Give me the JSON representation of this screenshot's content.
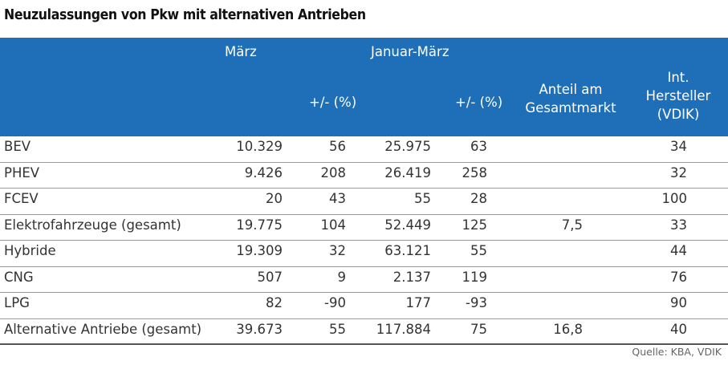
{
  "title": "Neuzulassungen von Pkw mit alternativen Antrieben",
  "header": {
    "maerz": "März",
    "jan_maerz": "Januar-März",
    "change1": "+/- (%)",
    "change2": "+/- (%)",
    "anteil_line1": "Anteil am",
    "anteil_line2": "Gesamtmarkt",
    "int_line1": "Int.",
    "int_line2": "Hersteller",
    "int_line3": "(VDIK)"
  },
  "rows": [
    {
      "label": "BEV",
      "maerz": "10.329",
      "maerz_change": "56",
      "jan_maerz": "25.975",
      "jan_change": "63",
      "anteil": "",
      "vdik": "34"
    },
    {
      "label": "PHEV",
      "maerz": "9.426",
      "maerz_change": "208",
      "jan_maerz": "26.419",
      "jan_change": "258",
      "anteil": "",
      "vdik": "32"
    },
    {
      "label": "FCEV",
      "maerz": "20",
      "maerz_change": "43",
      "jan_maerz": "55",
      "jan_change": "28",
      "anteil": "",
      "vdik": "100"
    },
    {
      "label": "Elektrofahrzeuge (gesamt)",
      "maerz": "19.775",
      "maerz_change": "104",
      "jan_maerz": "52.449",
      "jan_change": "125",
      "anteil": "7,5",
      "vdik": "33"
    },
    {
      "label": "Hybride",
      "maerz": "19.309",
      "maerz_change": "32",
      "jan_maerz": "63.121",
      "jan_change": "55",
      "anteil": "",
      "vdik": "44"
    },
    {
      "label": "CNG",
      "maerz": "507",
      "maerz_change": "9",
      "jan_maerz": "2.137",
      "jan_change": "119",
      "anteil": "",
      "vdik": "76"
    },
    {
      "label": "LPG",
      "maerz": "82",
      "maerz_change": "-90",
      "jan_maerz": "177",
      "jan_change": "-93",
      "anteil": "",
      "vdik": "90"
    },
    {
      "label": "Alternative Antriebe (gesamt)",
      "maerz": "39.673",
      "maerz_change": "55",
      "jan_maerz": "117.884",
      "jan_change": "75",
      "anteil": "16,8",
      "vdik": "40"
    }
  ],
  "source": "Quelle: KBA, VDIK",
  "colors": {
    "header_bg": "#1f6eb8",
    "header_text": "#ffffff",
    "row_divider": "#9a9a9a"
  }
}
